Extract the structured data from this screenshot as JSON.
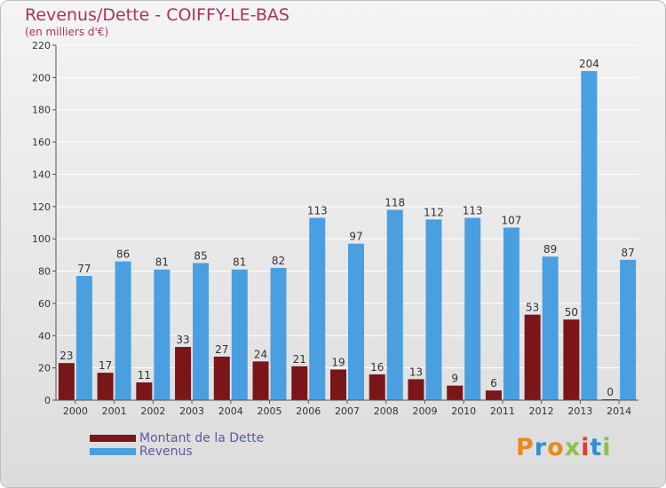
{
  "title": "Revenus/Dette - COIFFY-LE-BAS",
  "subtitle": "(en milliers d'€)",
  "logo_text": "Proxiti",
  "colors": {
    "dette": "#7a1518",
    "revenus": "#4a9fe0",
    "axis": "#555555",
    "grid": "#ffffff",
    "title": "#b03060",
    "logo": [
      "#e8891e",
      "#2f8fd4",
      "#e8891e",
      "#8bc34a",
      "#e53935",
      "#2f8fd4",
      "#8bc34a"
    ]
  },
  "legend": [
    {
      "label": "Montant de la Dette",
      "color": "#7a1518"
    },
    {
      "label": "Revenus",
      "color": "#4a9fe0"
    }
  ],
  "chart_data": {
    "type": "bar",
    "title": "Revenus/Dette - COIFFY-LE-BAS",
    "subtitle": "(en milliers d'€)",
    "categories": [
      "2000",
      "2001",
      "2002",
      "2003",
      "2004",
      "2005",
      "2006",
      "2007",
      "2008",
      "2009",
      "2010",
      "2011",
      "2012",
      "2013",
      "2014"
    ],
    "series": [
      {
        "name": "Montant de la Dette",
        "values": [
          23,
          17,
          11,
          33,
          27,
          24,
          21,
          19,
          16,
          13,
          9,
          6,
          53,
          50,
          0
        ]
      },
      {
        "name": "Revenus",
        "values": [
          77,
          86,
          81,
          85,
          81,
          82,
          113,
          97,
          118,
          112,
          113,
          107,
          89,
          204,
          87
        ]
      }
    ],
    "ylim": [
      0,
      220
    ],
    "yticks": [
      0,
      20,
      40,
      60,
      80,
      100,
      120,
      140,
      160,
      180,
      200,
      220
    ],
    "grid": true,
    "legend_position": "bottom-left"
  }
}
